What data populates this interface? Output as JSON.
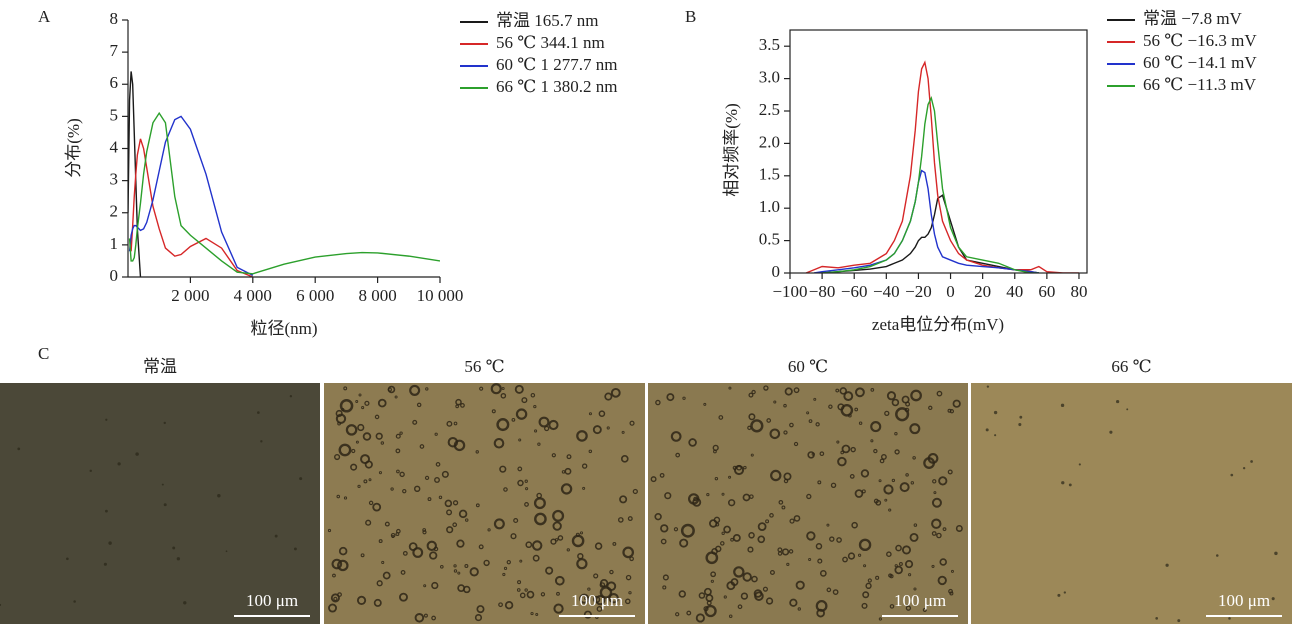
{
  "chart_data": [
    {
      "type": "line",
      "panel": "A",
      "xlabel": "粒径(nm)",
      "ylabel": "分布(%)",
      "frame": false,
      "x": [
        0,
        50,
        100,
        150,
        200,
        250,
        300,
        400,
        500,
        600,
        800,
        1000,
        1200,
        1500,
        1700,
        2000,
        2500,
        3000,
        3500,
        4000,
        5000,
        6000,
        7000,
        7500,
        8000,
        9000,
        10000
      ],
      "series": [
        {
          "name": "常温 165.7 nm",
          "color": "#1a1a1a",
          "values": [
            2,
            5.5,
            6.4,
            6,
            4.5,
            3,
            1.5,
            0,
            null,
            null,
            null,
            null,
            null,
            null,
            null,
            null,
            null,
            null,
            null,
            null,
            null,
            null,
            null,
            null,
            null,
            null,
            null
          ]
        },
        {
          "name": "56 ℃ 344.1 nm",
          "color": "#d62728",
          "values": [
            null,
            null,
            0.8,
            1.6,
            2.5,
            3.2,
            3.8,
            4.3,
            4.0,
            3.4,
            2.2,
            1.5,
            0.9,
            0.65,
            0.7,
            0.95,
            1.2,
            0.9,
            0.2,
            0,
            null,
            null,
            null,
            null,
            null,
            null,
            null
          ]
        },
        {
          "name": "60 ℃ 1 277.7 nm",
          "color": "#2233cc",
          "values": [
            null,
            0.8,
            1.3,
            1.5,
            1.6,
            1.6,
            1.55,
            1.45,
            1.5,
            1.7,
            2.4,
            3.3,
            4.2,
            4.9,
            5.0,
            4.6,
            3.2,
            1.4,
            0.3,
            0.05,
            null,
            null,
            null,
            null,
            null,
            null,
            null
          ]
        },
        {
          "name": "66 ℃ 1 380.2 nm",
          "color": "#2ca02c",
          "values": [
            null,
            1.2,
            0.5,
            0.5,
            0.6,
            1.0,
            1.5,
            2.3,
            3.2,
            3.9,
            4.8,
            5.1,
            4.8,
            2.5,
            1.6,
            1.3,
            0.9,
            0.5,
            0.15,
            0.1,
            0.4,
            0.62,
            0.73,
            0.76,
            0.75,
            0.65,
            0.5
          ]
        }
      ],
      "xlim": [
        0,
        10000
      ],
      "xticks": [
        {
          "value": 2000,
          "label": "2 000"
        },
        {
          "value": 4000,
          "label": "4 000"
        },
        {
          "value": 6000,
          "label": "6 000"
        },
        {
          "value": 8000,
          "label": "8 000"
        },
        {
          "value": 10000,
          "label": "10 000"
        }
      ],
      "ylim": [
        0,
        8
      ],
      "yticks": [
        0,
        1,
        2,
        3,
        4,
        5,
        6,
        7,
        8
      ]
    },
    {
      "type": "line",
      "panel": "B",
      "xlabel": "zeta电位分布(mV)",
      "ylabel": "相对频率(%)",
      "frame": true,
      "x": [
        -90,
        -85,
        -80,
        -70,
        -60,
        -50,
        -40,
        -35,
        -30,
        -25,
        -22,
        -20,
        -18,
        -16,
        -14,
        -12,
        -10,
        -8,
        -5,
        0,
        5,
        10,
        20,
        30,
        40,
        50,
        55,
        60,
        70,
        80
      ],
      "series": [
        {
          "name": "常温 −7.8 mV",
          "color": "#1a1a1a",
          "values": [
            null,
            null,
            0,
            0.02,
            0.04,
            0.06,
            0.1,
            0.15,
            0.2,
            0.3,
            0.4,
            0.5,
            0.55,
            0.55,
            0.6,
            0.7,
            0.9,
            1.15,
            1.2,
            0.8,
            0.4,
            0.2,
            0.15,
            0.1,
            0.05,
            0.02,
            0,
            null,
            null,
            null
          ]
        },
        {
          "name": "56 ℃ −16.3 mV",
          "color": "#d62728",
          "values": [
            0,
            0.05,
            0.1,
            0.08,
            0.12,
            0.15,
            0.3,
            0.5,
            0.8,
            1.5,
            2.2,
            2.8,
            3.15,
            3.25,
            3.0,
            2.4,
            1.7,
            1.2,
            0.8,
            0.5,
            0.3,
            0.2,
            0.12,
            0.08,
            0.05,
            0.05,
            0.1,
            0.02,
            0,
            0
          ]
        },
        {
          "name": "60 ℃ −14.1 mV",
          "color": "#2233cc",
          "values": [
            null,
            0,
            0.02,
            0.05,
            0.08,
            0.12,
            0.2,
            0.3,
            0.5,
            0.8,
            1.1,
            1.4,
            1.58,
            1.55,
            1.3,
            0.9,
            0.6,
            0.4,
            0.25,
            0.2,
            0.15,
            0.12,
            0.1,
            0.08,
            0.05,
            0.02,
            0,
            null,
            null,
            null
          ]
        },
        {
          "name": "66 ℃ −11.3 mV",
          "color": "#2ca02c",
          "values": [
            null,
            null,
            0,
            0.02,
            0.05,
            0.1,
            0.2,
            0.3,
            0.5,
            0.8,
            1.1,
            1.4,
            1.8,
            2.3,
            2.6,
            2.7,
            2.5,
            2.0,
            1.3,
            0.7,
            0.4,
            0.25,
            0.2,
            0.15,
            0.05,
            0,
            0,
            null,
            null,
            null
          ]
        }
      ],
      "xlim": [
        -100,
        85
      ],
      "xticks": [
        {
          "value": -100,
          "label": "−100"
        },
        {
          "value": -80,
          "label": "−80"
        },
        {
          "value": -60,
          "label": "−60"
        },
        {
          "value": -40,
          "label": "−40"
        },
        {
          "value": -20,
          "label": "−20"
        },
        0,
        20,
        40,
        60,
        80
      ],
      "ylim": [
        0,
        3.75
      ],
      "yticks": [
        0,
        0.5,
        {
          "value": 1,
          "label": "1.0"
        },
        1.5,
        {
          "value": 2,
          "label": "2.0"
        },
        2.5,
        {
          "value": 3,
          "label": "3.0"
        },
        3.5
      ]
    }
  ],
  "micrographs": {
    "panel": "C",
    "items": [
      {
        "title": "常温",
        "scale": "100 μm"
      },
      {
        "title": "56 ℃",
        "scale": "100 μm"
      },
      {
        "title": "60 ℃",
        "scale": "100 μm"
      },
      {
        "title": "66 ℃",
        "scale": "100 μm"
      }
    ]
  }
}
